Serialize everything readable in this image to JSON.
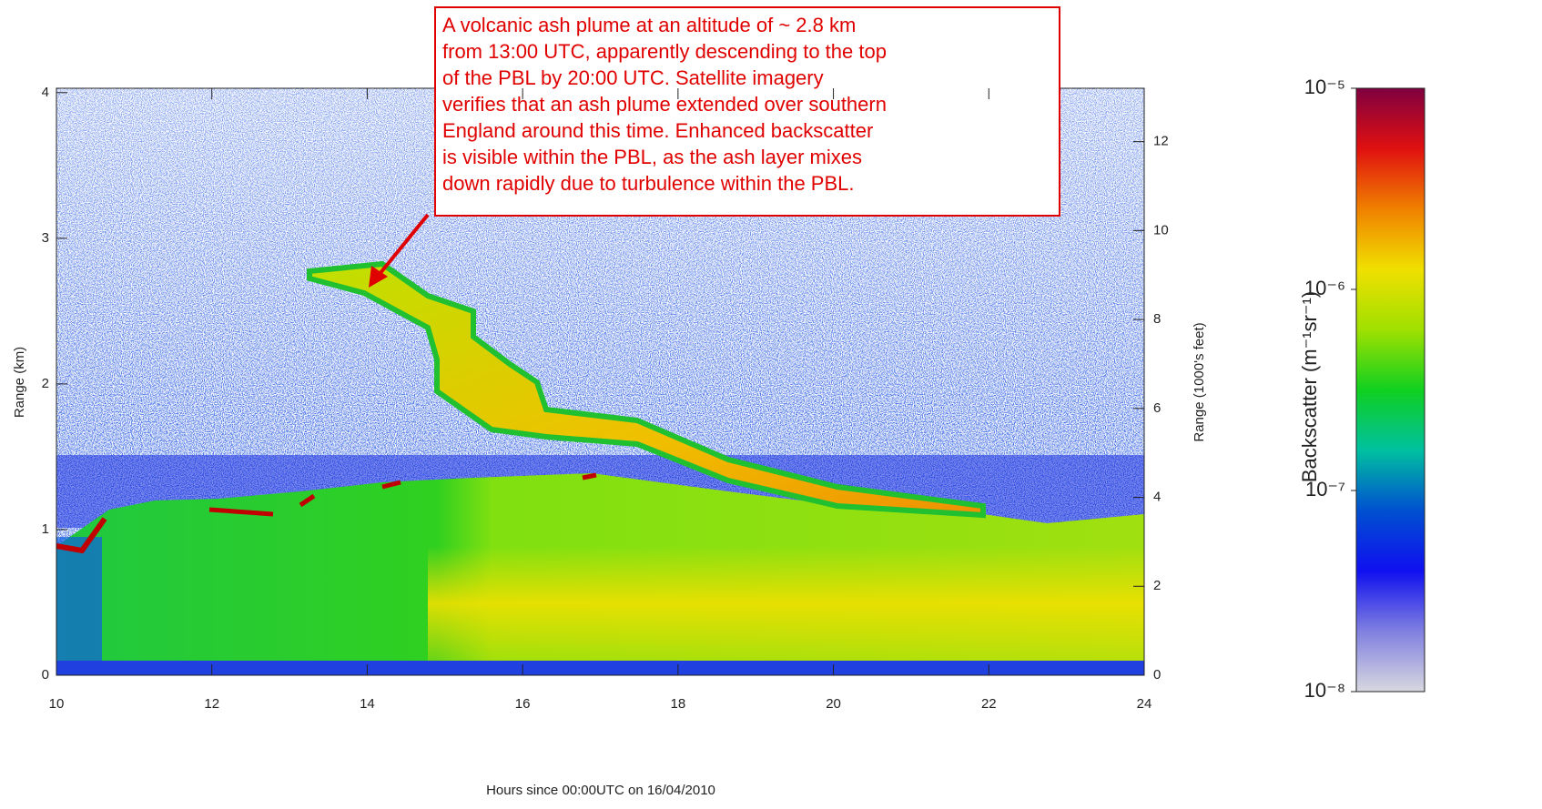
{
  "chart_data": {
    "type": "heatmap",
    "xlabel": "Hours since 00:00UTC on 16/04/2010",
    "ylabel": "Range (km)",
    "y2label": "Range (1000's feet)",
    "xlim": [
      10,
      24
    ],
    "xticks": [
      10,
      12,
      14,
      16,
      18,
      20,
      22,
      24
    ],
    "ylim": [
      0,
      4.03
    ],
    "yticks": [
      0,
      1,
      2,
      3,
      4
    ],
    "y2lim": [
      0,
      13.2
    ],
    "y2ticks": [
      0,
      2,
      4,
      6,
      8,
      10,
      12
    ],
    "colorbar_label": "Backscatter (m⁻¹sr⁻¹)",
    "colorbar_scale": "log",
    "colorbar_lim": [
      1e-08,
      1e-05
    ],
    "colorbar_ticks": [
      {
        "value": 1e-05,
        "label": "10⁻⁵"
      },
      {
        "value": 1e-06,
        "label": "10⁻⁶"
      },
      {
        "value": 1e-07,
        "label": "10⁻⁷"
      },
      {
        "value": 1e-08,
        "label": "10⁻⁸"
      }
    ],
    "colormap": [
      "#d8d8e0",
      "#8080e0",
      "#1010f0",
      "#0050d0",
      "#00c0a0",
      "#10d020",
      "#a0e000",
      "#f0e000",
      "#f08000",
      "#e01010",
      "#800040"
    ],
    "annotation_lines": [
      "A volcanic ash plume at an altitude of ~ 2.8 km",
      "from 13:00 UTC, apparently descending to the top",
      "of the PBL by 20:00 UTC.  Satellite imagery",
      "verifies that an ash plume extended over southern",
      "England around this time.  Enhanced backscatter",
      "is visible within the PBL, as the ash layer mixes",
      "down rapidly due to turbulence within the PBL."
    ]
  }
}
